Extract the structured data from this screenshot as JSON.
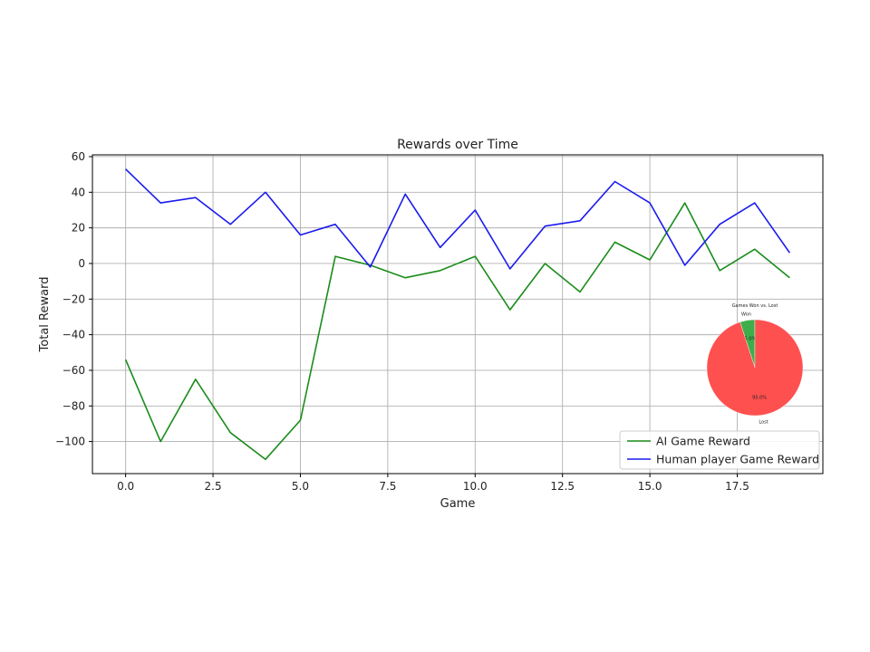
{
  "chart_data": [
    {
      "type": "line",
      "title": "Rewards over Time",
      "xlabel": "Game",
      "ylabel": "Total Reward",
      "xlim": [
        -0.95,
        19.95
      ],
      "ylim": [
        -118,
        61
      ],
      "xticks": [
        0.0,
        2.5,
        5.0,
        7.5,
        10.0,
        12.5,
        15.0,
        17.5
      ],
      "xtick_labels": [
        "0.0",
        "2.5",
        "5.0",
        "7.5",
        "10.0",
        "12.5",
        "15.0",
        "17.5"
      ],
      "yticks": [
        60,
        40,
        20,
        0,
        -20,
        -40,
        -60,
        -80,
        -100
      ],
      "ytick_labels": [
        "60",
        "40",
        "20",
        "0",
        "−20",
        "−40",
        "−60",
        "−80",
        "−100"
      ],
      "grid": true,
      "legend_position": "bottom-right",
      "x": [
        0,
        1,
        2,
        3,
        4,
        5,
        6,
        7,
        8,
        9,
        10,
        11,
        12,
        13,
        14,
        15,
        16,
        17,
        18,
        19
      ],
      "series": [
        {
          "name": "AI Game Reward",
          "color": "#1a8c1a",
          "values": [
            -54,
            -100,
            -65,
            -95,
            -110,
            -88,
            4,
            -1,
            -8,
            -4,
            4,
            -26,
            0,
            -16,
            12,
            2,
            34,
            -4,
            8,
            -8
          ]
        },
        {
          "name": "Human player Game Reward",
          "color": "#1a1aee",
          "values": [
            53,
            34,
            37,
            22,
            40,
            16,
            22,
            -2,
            39,
            9,
            30,
            -3,
            21,
            24,
            46,
            34,
            -1,
            22,
            34,
            6
          ]
        }
      ]
    },
    {
      "type": "pie",
      "title": "Games Won vs. Lost",
      "labels": [
        "Won",
        "Lost"
      ],
      "values": [
        5.0,
        95.0
      ],
      "pct_labels": [
        "5.0%",
        "95.0%"
      ],
      "colors": [
        "#3fae4a",
        "#ff5050"
      ]
    }
  ]
}
